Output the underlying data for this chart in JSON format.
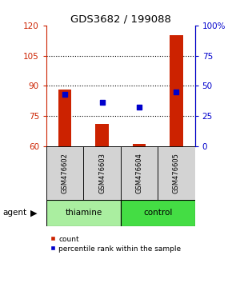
{
  "title": "GDS3682 / 199088",
  "samples": [
    "GSM476602",
    "GSM476603",
    "GSM476604",
    "GSM476605"
  ],
  "groups": [
    "thiamine",
    "thiamine",
    "control",
    "control"
  ],
  "thiamine_color": "#AAEEA0",
  "control_color": "#44DD44",
  "bar_bottom": 60,
  "bar_values": [
    88,
    71,
    61,
    115
  ],
  "percentile_values": [
    43,
    36,
    32,
    45
  ],
  "ylim_left": [
    60,
    120
  ],
  "ylim_right": [
    0,
    100
  ],
  "yticks_left": [
    60,
    75,
    90,
    105,
    120
  ],
  "yticks_right": [
    0,
    25,
    50,
    75,
    100
  ],
  "bar_color": "#CC2200",
  "dot_color": "#0000CC",
  "legend_items": [
    "count",
    "percentile rank within the sample"
  ],
  "agent_label": "agent"
}
